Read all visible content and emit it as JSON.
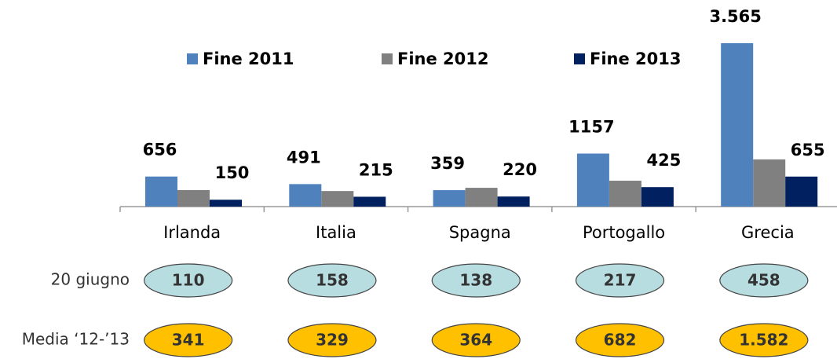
{
  "chart_data": {
    "type": "bar",
    "categories": [
      "Irlanda",
      "Italia",
      "Spagna",
      "Portogallo",
      "Grecia"
    ],
    "series": [
      {
        "name": "Fine 2011",
        "color": "#4f81bd",
        "values": [
          656,
          491,
          359,
          1157,
          3565
        ],
        "value_labels": [
          "656",
          "491",
          "359",
          "1157",
          "3.565"
        ]
      },
      {
        "name": "Fine 2012",
        "color": "#808080",
        "values": [
          360,
          340,
          410,
          565,
          1030
        ]
      },
      {
        "name": "Fine 2013",
        "color": "#002060",
        "values": [
          150,
          215,
          220,
          425,
          655
        ]
      }
    ],
    "rows": [
      {
        "name": "20 giugno",
        "color": "#b7dde1",
        "values": [
          110,
          158,
          138,
          217,
          458
        ]
      },
      {
        "name": "Media ‘12-’13",
        "color": "#ffc000",
        "values": [
          341,
          329,
          364,
          682,
          1582
        ],
        "value_labels": [
          "341",
          "329",
          "364",
          "682",
          "1.582"
        ]
      }
    ]
  }
}
